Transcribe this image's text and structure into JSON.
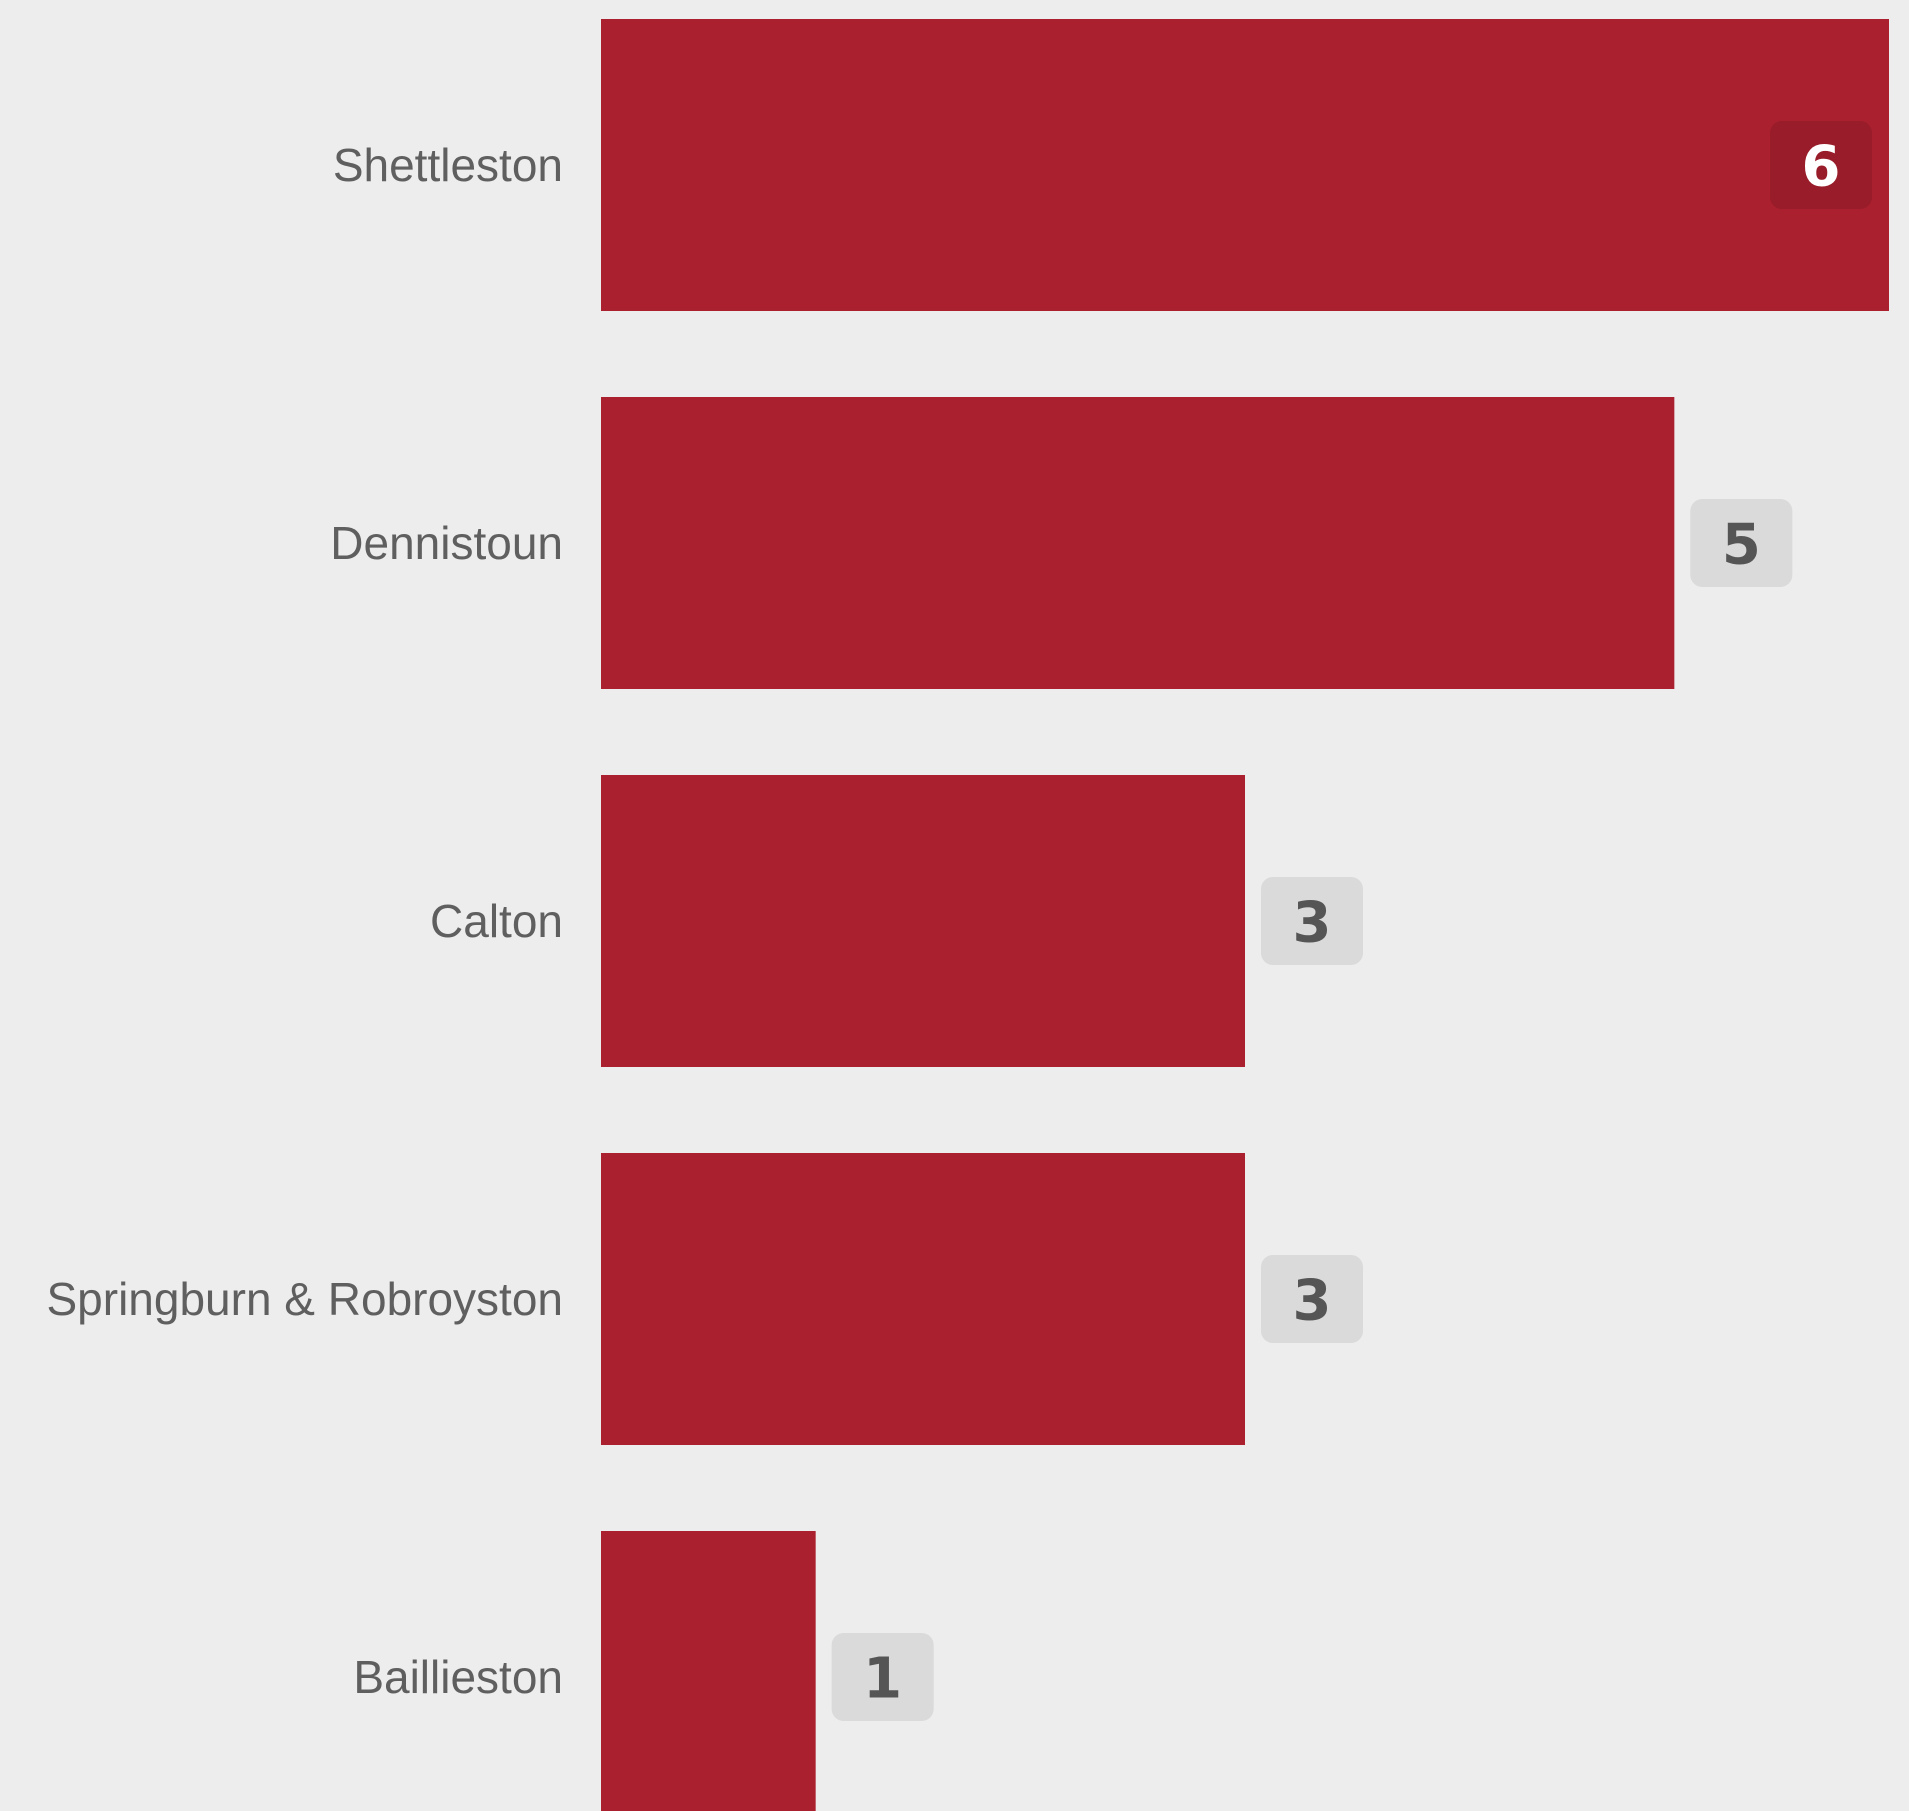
{
  "chart_data": {
    "type": "bar",
    "orientation": "horizontal",
    "categories": [
      "Shettleston",
      "Dennistoun",
      "Calton",
      "Springburn & Robroyston",
      "Baillieston"
    ],
    "values": [
      6,
      5,
      3,
      3,
      1
    ],
    "title": "",
    "xlabel": "",
    "ylabel": "",
    "xlim": [
      0,
      6
    ],
    "grid": false,
    "legend": "none"
  },
  "colors": {
    "background": "#ededed",
    "bar": "#ab202f",
    "label_text": "#5f5f5f",
    "badge_outside_fill": "#dadada",
    "badge_outside_text": "#555555",
    "badge_inside_fill": "#981c29",
    "badge_inside_text": "#ffffff"
  }
}
